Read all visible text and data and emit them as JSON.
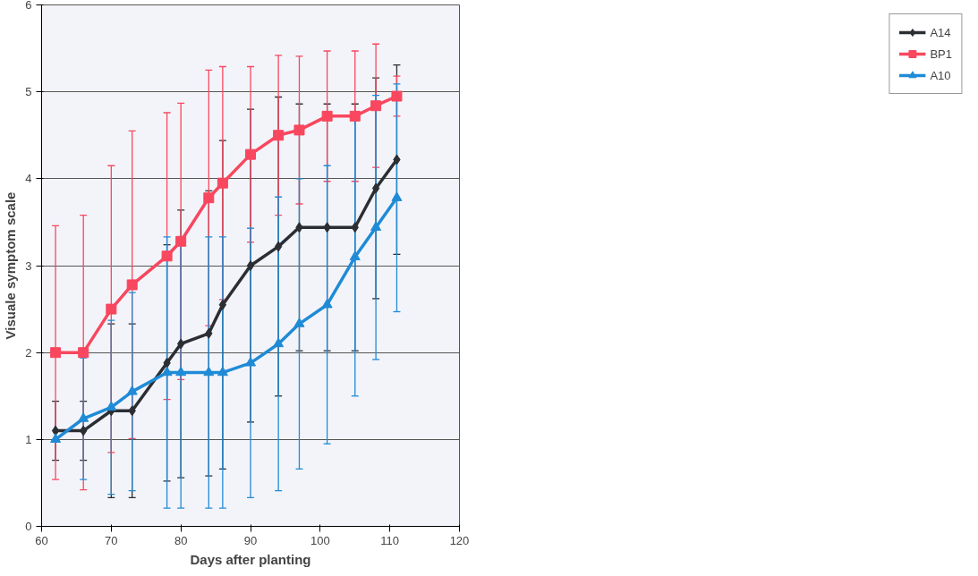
{
  "chart_data": {
    "type": "line",
    "xlabel": "Days after planting",
    "ylabel": "Visuale symptom scale",
    "x": [
      62,
      66,
      70,
      73,
      78,
      80,
      84,
      86,
      90,
      94,
      97,
      101,
      105,
      108,
      111
    ],
    "series": [
      {
        "name": "A14",
        "color": "#2b2e33",
        "marker": "diamond",
        "values": [
          1.1,
          1.1,
          1.33,
          1.33,
          1.88,
          2.1,
          2.22,
          2.55,
          3.0,
          3.22,
          3.44,
          3.44,
          3.44,
          3.89,
          4.22
        ],
        "errors": [
          0.34,
          0.34,
          1.0,
          1.0,
          1.36,
          1.54,
          1.64,
          1.89,
          1.8,
          1.72,
          1.42,
          1.42,
          1.42,
          1.27,
          1.09
        ]
      },
      {
        "name": "BP1",
        "color": "#f8475e",
        "marker": "square",
        "values": [
          2.0,
          2.0,
          2.5,
          2.78,
          3.11,
          3.28,
          3.78,
          3.95,
          4.28,
          4.5,
          4.56,
          4.72,
          4.72,
          4.84,
          4.95
        ],
        "errors": [
          1.46,
          1.58,
          1.65,
          1.77,
          1.65,
          1.59,
          1.47,
          1.34,
          1.01,
          0.92,
          0.85,
          0.75,
          0.75,
          0.71,
          0.23
        ]
      },
      {
        "name": "A10",
        "color": "#1f8bd6",
        "marker": "triangle",
        "values": [
          1.0,
          1.24,
          1.37,
          1.55,
          1.77,
          1.77,
          1.77,
          1.77,
          1.88,
          2.1,
          2.33,
          2.55,
          3.1,
          3.44,
          3.78
        ],
        "errors": [
          null,
          0.7,
          1.0,
          1.14,
          1.56,
          1.56,
          1.56,
          1.56,
          1.55,
          1.69,
          1.67,
          1.6,
          1.6,
          1.52,
          1.31
        ]
      }
    ],
    "xlim": [
      60,
      120
    ],
    "xticks": [
      60,
      70,
      80,
      90,
      100,
      110,
      120
    ],
    "ylim": [
      0,
      6
    ],
    "yticks": [
      0,
      1,
      2,
      3,
      4,
      5,
      6
    ],
    "grid": "y",
    "legend": "right"
  }
}
